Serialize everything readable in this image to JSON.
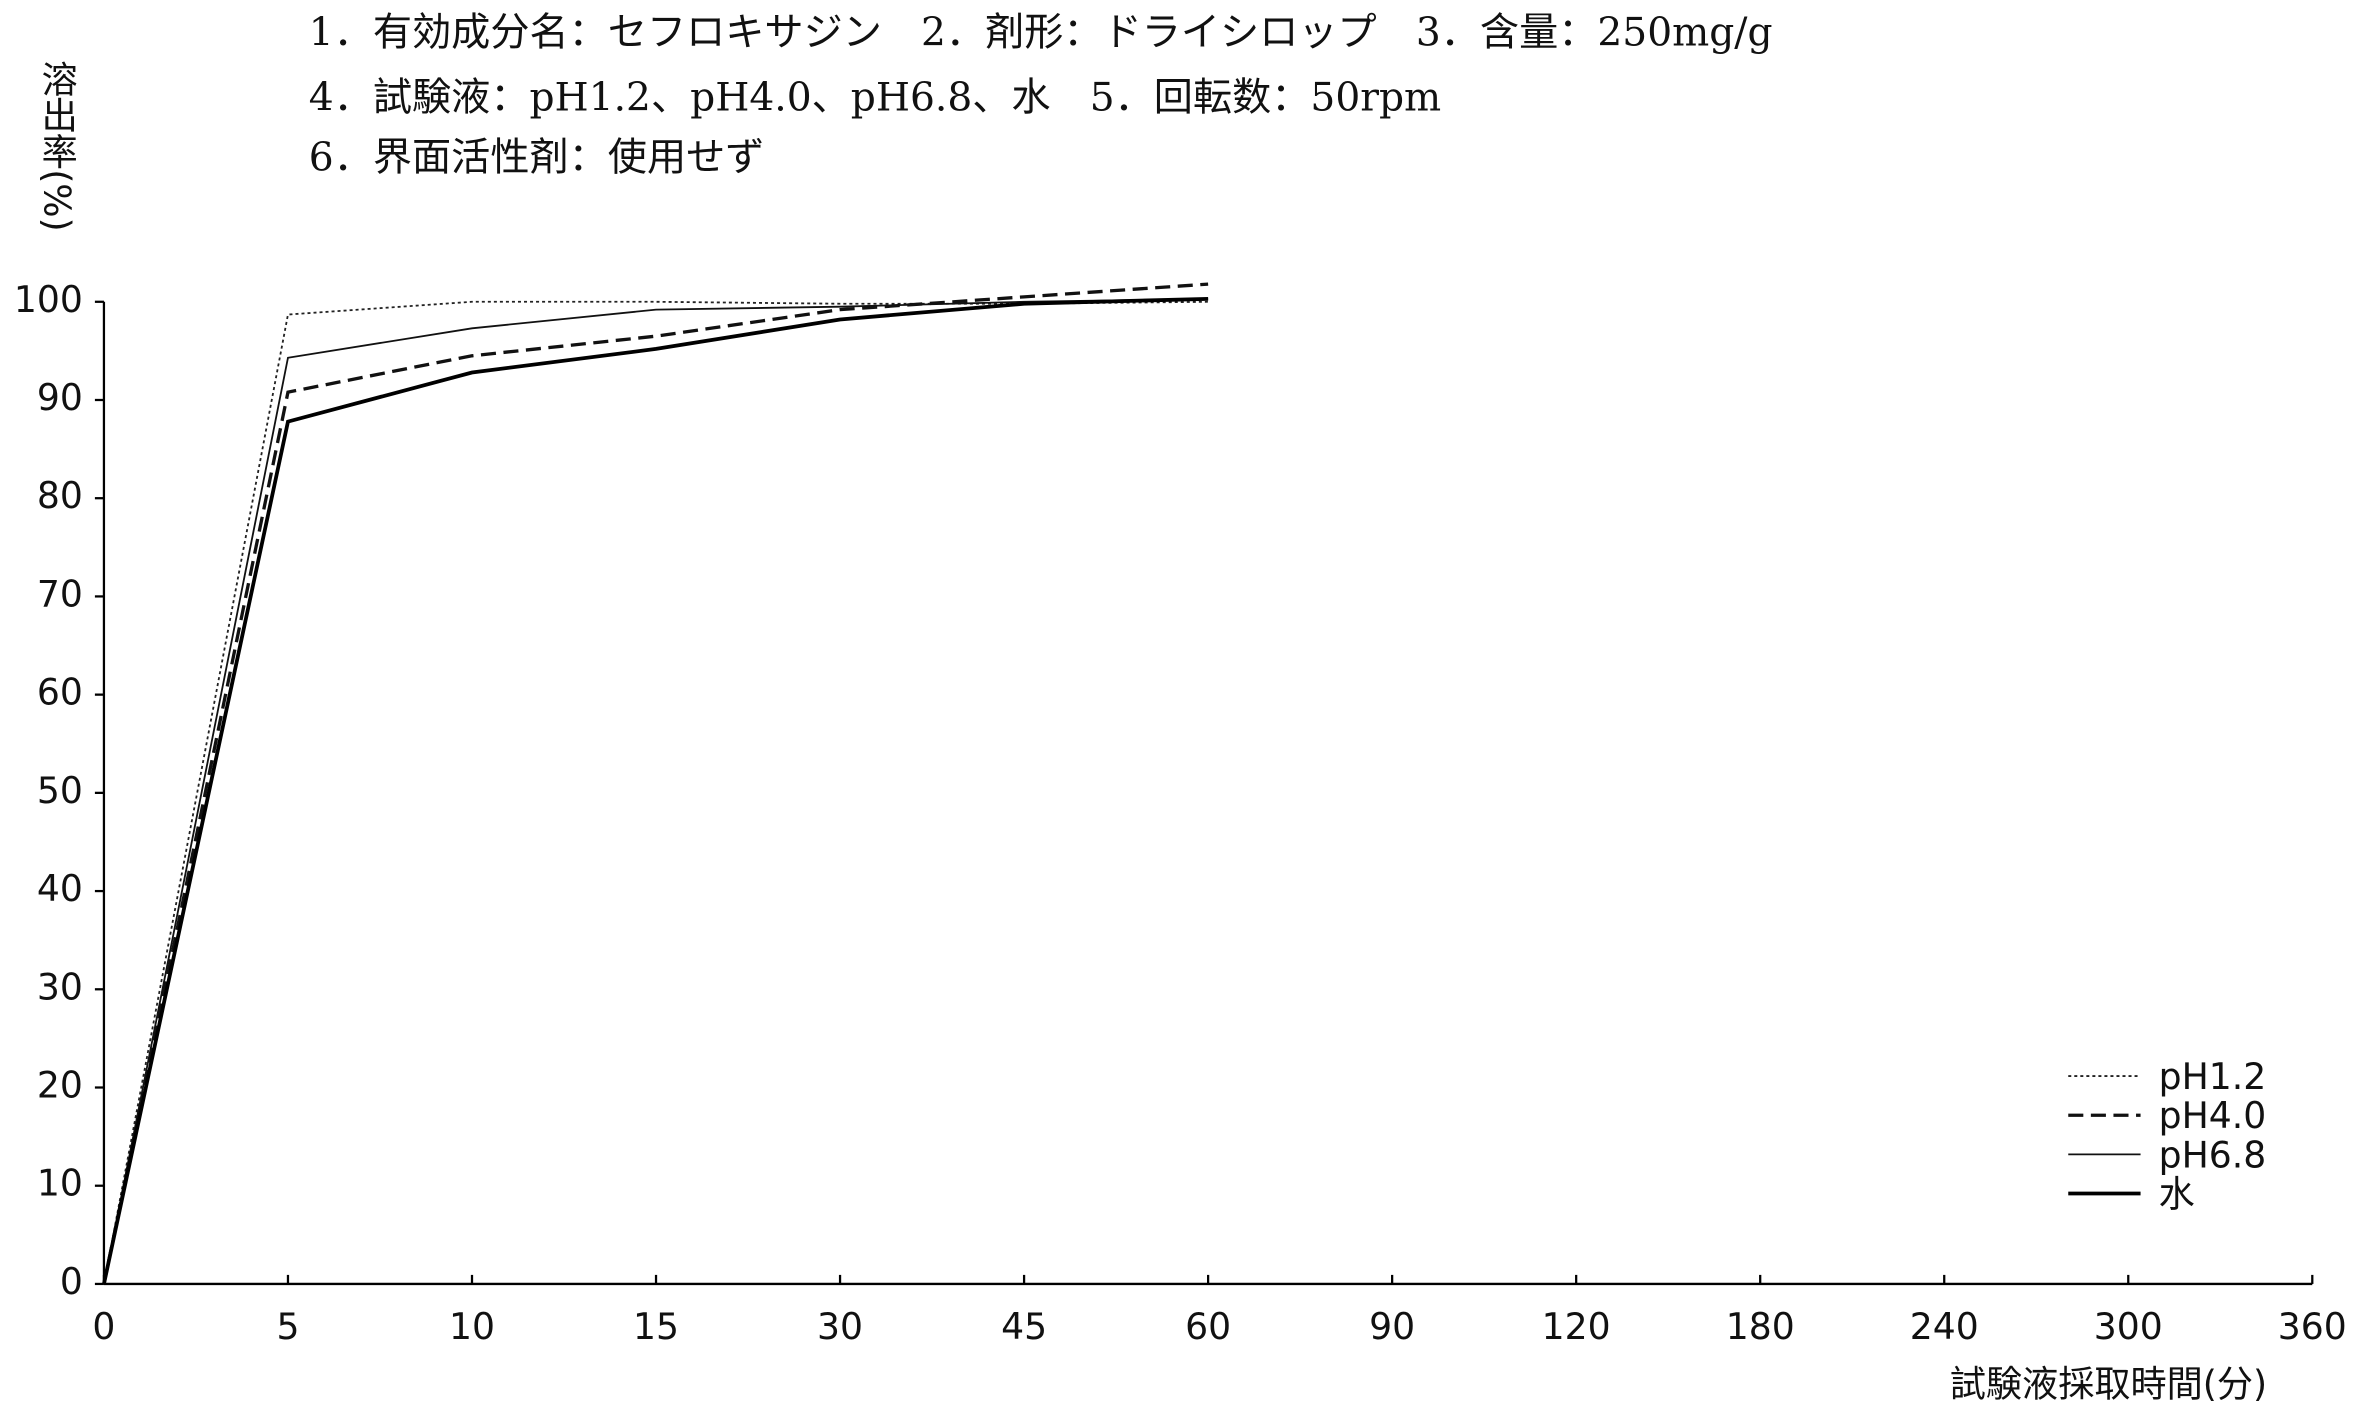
{
  "chart_data": {
    "type": "line",
    "annotations": [
      "1．有効成分名：セフロキサジン　2．剤形：ドライシロップ　3．含量：250mg/g",
      "4．試験液：pH1.2、pH4.0、pH6.8、水　5．回転数：50rpm",
      "6．界面活性剤：使用せず"
    ],
    "y_label": "溶出率(%)",
    "x_label": "試験液採取時間(分)",
    "categories": [
      "0",
      "5",
      "10",
      "15",
      "30",
      "45",
      "60",
      "90",
      "120",
      "180",
      "240",
      "300",
      "360"
    ],
    "ylim": [
      0,
      100
    ],
    "yticks": [
      0,
      10,
      20,
      30,
      40,
      50,
      60,
      70,
      80,
      90,
      100
    ],
    "legend": "lower right",
    "series": [
      {
        "name": "pH1.2",
        "color": "#222222",
        "style": "dotted",
        "values": [
          0,
          98.7,
          100,
          100,
          99.8,
          99.8,
          100,
          null,
          null,
          null,
          null,
          null,
          null
        ]
      },
      {
        "name": "pH4.0",
        "color": "#111111",
        "style": "dashed",
        "values": [
          0,
          90.8,
          94.5,
          96.5,
          99.2,
          100.5,
          101.8,
          null,
          null,
          null,
          null,
          null,
          null
        ]
      },
      {
        "name": "pH6.8",
        "color": "#111111",
        "style": "thin",
        "values": [
          0,
          94.3,
          97.3,
          99.2,
          99.5,
          100,
          100.3,
          null,
          null,
          null,
          null,
          null,
          null
        ]
      },
      {
        "name": "水",
        "color": "#000000",
        "style": "thick",
        "values": [
          0,
          87.8,
          92.8,
          95.2,
          98.2,
          99.8,
          100.3,
          null,
          null,
          null,
          null,
          null,
          null
        ]
      }
    ]
  }
}
